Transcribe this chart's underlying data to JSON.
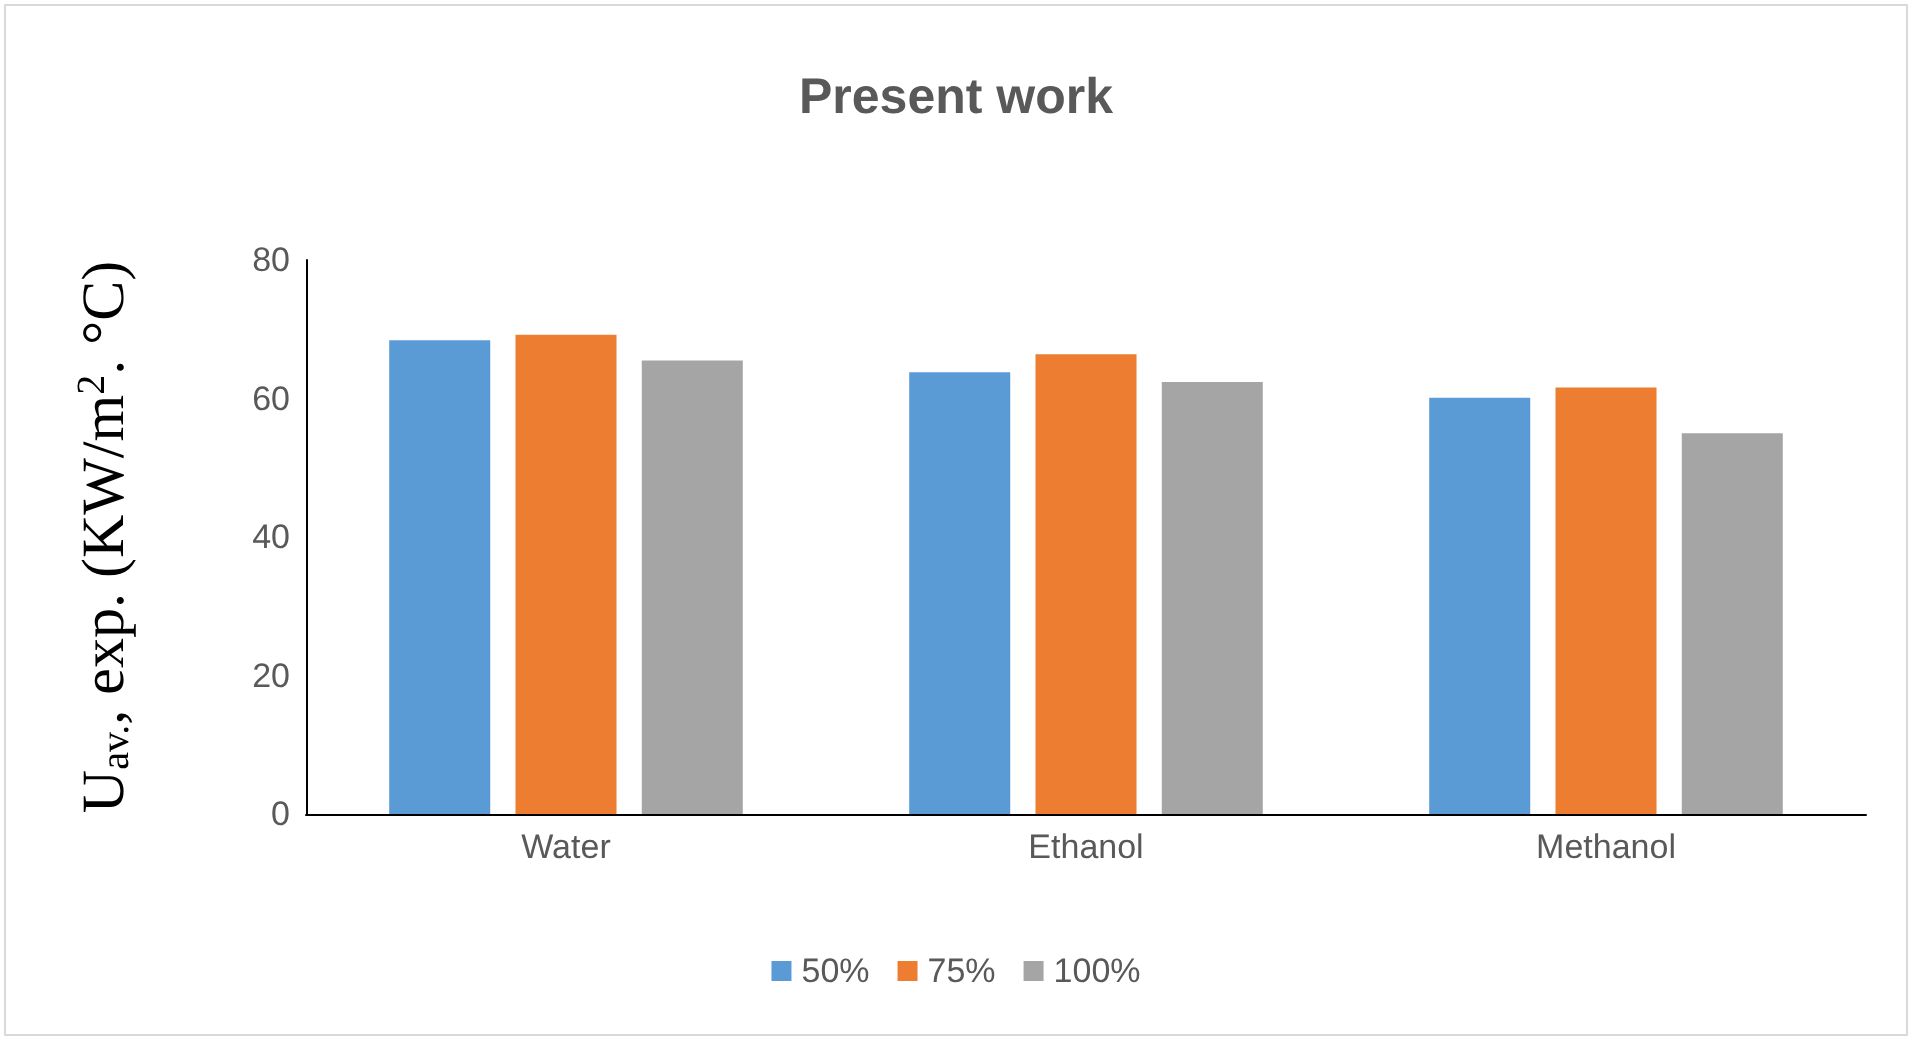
{
  "chart_data": {
    "type": "bar",
    "title": "Present work",
    "ylabel": "U$_{av.}$, exp. (KW/m$^{2}$. °C)",
    "categories": [
      "Water",
      "Ethanol",
      "Methanol"
    ],
    "series": [
      {
        "name": "50%",
        "color": "#5b9bd5",
        "values": [
          68.4,
          63.8,
          60.1
        ]
      },
      {
        "name": "75%",
        "color": "#ed7d31",
        "values": [
          69.2,
          66.4,
          61.6
        ]
      },
      {
        "name": "100%",
        "color": "#a5a5a5",
        "values": [
          65.5,
          62.4,
          55.0
        ]
      }
    ],
    "ylim": [
      0,
      80
    ],
    "yticks": [
      0,
      20,
      40,
      60,
      80
    ],
    "grid": false,
    "legend": "bottom"
  }
}
